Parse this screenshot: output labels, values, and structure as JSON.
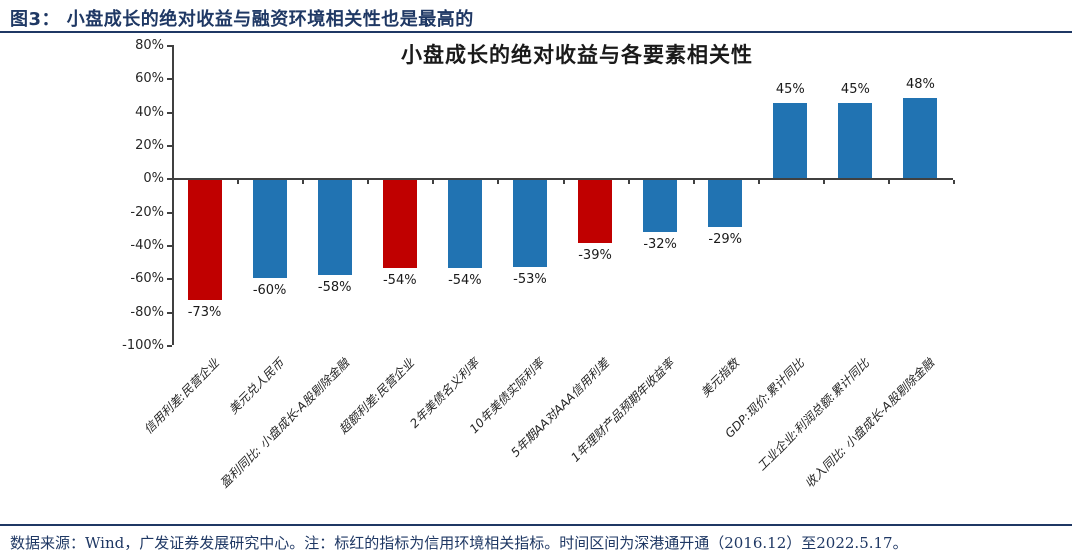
{
  "figure_header": {
    "title": "图3： 小盘成长的绝对收益与融资环境相关性也是最高的"
  },
  "footer": {
    "note": "数据来源：Wind，广发证券发展研究中心。注：标红的指标为信用环境相关指标。时间区间为深港通开通（2016.12）至2022.5.17。"
  },
  "colors": {
    "navy_accent": "#1F3864",
    "bar_blue": "#2173B2",
    "bar_red": "#C00000",
    "axis": "#404040"
  },
  "chart_data": {
    "type": "bar",
    "title": "小盘成长的绝对收益与各要素相关性",
    "categories": [
      "信用利差:民营企业",
      "美元兑人民币",
      "盈利同比: 小盘成长-A股剔除金融",
      "超额利差:民营企业",
      "2年美债名义利率",
      "10年美债实际利率",
      "5年期AA对AAA信用利差",
      "1年理财产品预期年收益率",
      "美元指数",
      "GDP:现价:累计同比",
      "工业企业:利润总额:累计同比",
      "收入同比: 小盘成长-A股剔除金融"
    ],
    "values": [
      -73,
      -60,
      -58,
      -54,
      -54,
      -53,
      -39,
      -32,
      -29,
      45,
      45,
      48
    ],
    "value_labels": [
      "-73%",
      "-60%",
      "-58%",
      "-54%",
      "-54%",
      "-53%",
      "-39%",
      "-32%",
      "-29%",
      "45%",
      "45%",
      "48%"
    ],
    "bar_color_keys": [
      "bar_red",
      "bar_blue",
      "bar_blue",
      "bar_red",
      "bar_blue",
      "bar_blue",
      "bar_red",
      "bar_blue",
      "bar_blue",
      "bar_blue",
      "bar_blue",
      "bar_blue"
    ],
    "ylim": [
      -100,
      80
    ],
    "ytick_labels": [
      "80%",
      "60%",
      "40%",
      "20%",
      "0%",
      "-20%",
      "-40%",
      "-60%",
      "-80%",
      "-100%"
    ],
    "ytick_values": [
      80,
      60,
      40,
      20,
      0,
      -20,
      -40,
      -60,
      -80,
      -100
    ],
    "xlabel": "",
    "ylabel": "",
    "grid": false,
    "legend": "none"
  }
}
